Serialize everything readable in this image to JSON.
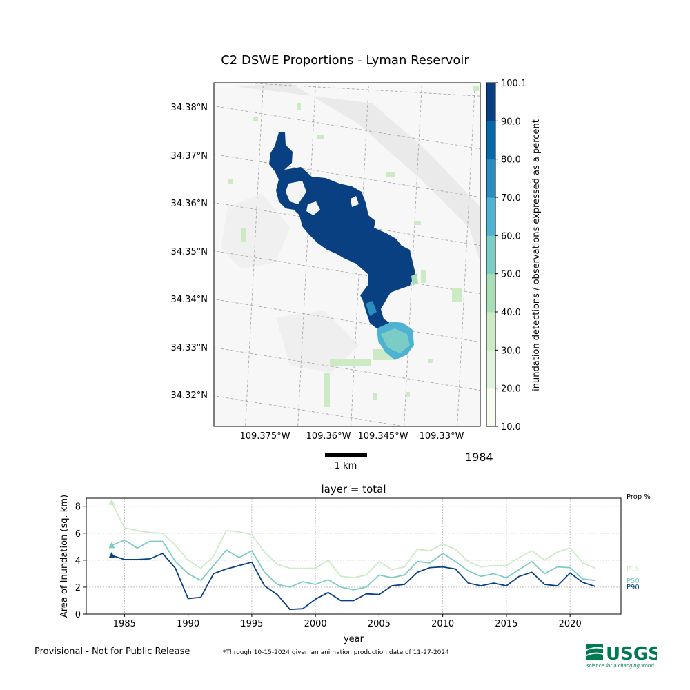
{
  "map": {
    "title": "C2 DSWE Proportions - Lyman Reservoir",
    "lat_labels": [
      "34.38°N",
      "34.37°N",
      "34.36°N",
      "34.35°N",
      "34.34°N",
      "34.33°N",
      "34.32°N"
    ],
    "lon_labels": [
      "109.375°W",
      "109.36°W",
      "109.345°W",
      "109.33°W"
    ],
    "scale_bar_label": "1 km",
    "year": "1984",
    "colorbar": {
      "label": "inundation detections / observations expressed as a percent",
      "ticks": [
        "10.0",
        "20.0",
        "30.0",
        "40.0",
        "50.0",
        "60.0",
        "70.0",
        "80.0",
        "90.0",
        "100.1"
      ],
      "colors": [
        "#f7fcf0",
        "#e0f3db",
        "#ccebc5",
        "#a8ddb5",
        "#7bccc4",
        "#4eb3d3",
        "#2b8cbe",
        "#0868ac",
        "#084081"
      ]
    }
  },
  "chart_data": {
    "type": "line",
    "title": "layer = total",
    "xlabel": "year",
    "ylabel": "Area of Inundation (sq. km)",
    "xlim": [
      1982,
      2024
    ],
    "ylim": [
      0,
      8.6
    ],
    "xticks": [
      1985,
      1990,
      1995,
      2000,
      2005,
      2010,
      2015,
      2020
    ],
    "yticks": [
      0,
      2,
      4,
      6,
      8
    ],
    "grid": true,
    "legend_title": "Prop %",
    "x": [
      1984,
      1985,
      1986,
      1987,
      1988,
      1989,
      1990,
      1991,
      1992,
      1993,
      1994,
      1995,
      1996,
      1997,
      1998,
      1999,
      2000,
      2001,
      2002,
      2003,
      2004,
      2005,
      2006,
      2007,
      2008,
      2009,
      2010,
      2011,
      2012,
      2013,
      2014,
      2015,
      2016,
      2017,
      2018,
      2019,
      2020,
      2021,
      2022
    ],
    "series": [
      {
        "name": "P15",
        "color": "#ccebc5",
        "marker_first": true,
        "values": [
          8.3,
          6.4,
          6.2,
          6.05,
          6.0,
          5.1,
          4.0,
          3.4,
          4.3,
          6.2,
          6.1,
          5.9,
          4.6,
          3.7,
          3.4,
          3.4,
          3.4,
          4.0,
          2.8,
          2.7,
          2.9,
          3.9,
          3.3,
          3.5,
          4.8,
          4.7,
          5.2,
          4.8,
          3.9,
          3.5,
          3.6,
          3.6,
          4.2,
          4.7,
          4.0,
          4.6,
          4.9,
          3.8,
          3.4
        ]
      },
      {
        "name": "P50",
        "color": "#7bccc4",
        "marker_first": true,
        "values": [
          5.1,
          5.5,
          4.9,
          5.4,
          5.4,
          3.9,
          3.0,
          2.5,
          3.6,
          4.75,
          4.2,
          4.7,
          3.1,
          2.2,
          2.0,
          2.4,
          2.2,
          2.55,
          2.0,
          1.8,
          2.0,
          2.9,
          2.7,
          2.9,
          3.9,
          3.8,
          4.5,
          3.9,
          3.2,
          2.8,
          3.0,
          2.7,
          3.3,
          3.9,
          3.0,
          3.5,
          3.45,
          2.6,
          2.5
        ]
      },
      {
        "name": "P90",
        "color": "#084081",
        "marker_first": true,
        "values": [
          4.35,
          4.05,
          4.05,
          4.1,
          4.5,
          3.4,
          1.15,
          1.25,
          3.0,
          3.35,
          3.6,
          3.85,
          2.1,
          1.45,
          0.35,
          0.4,
          1.1,
          1.6,
          1.0,
          1.0,
          1.5,
          1.45,
          2.1,
          2.2,
          3.1,
          3.45,
          3.5,
          3.35,
          2.3,
          2.1,
          2.3,
          2.1,
          2.8,
          3.1,
          2.2,
          2.1,
          3.05,
          2.35,
          2.05
        ]
      }
    ]
  },
  "footer": {
    "provisional": "Provisional - Not for Public Release",
    "footnote": "*Through 10-15-2024 given an animation production date of 11-27-2024",
    "logo_text": "USGS",
    "logo_tagline": "science for a changing world",
    "logo_color": "#007a53"
  }
}
